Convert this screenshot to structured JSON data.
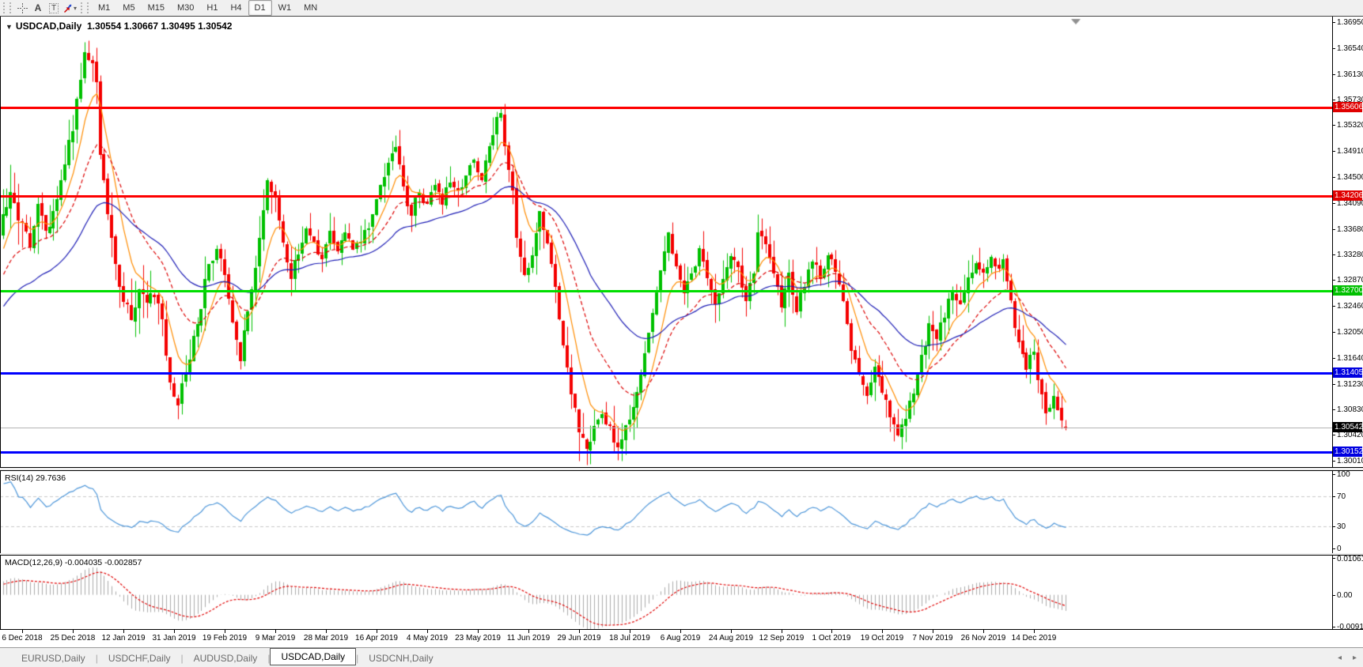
{
  "toolbar": {
    "tools": [
      {
        "name": "crosshair-icon",
        "glyph": "+"
      },
      {
        "name": "text-label-icon",
        "glyph": "A"
      },
      {
        "name": "text-box-icon",
        "glyph": "T"
      },
      {
        "name": "arrows-icon",
        "glyph": "⇅"
      }
    ],
    "timeframes": [
      "M1",
      "M5",
      "M15",
      "M30",
      "H1",
      "H4",
      "D1",
      "W1",
      "MN"
    ],
    "active_timeframe": "D1"
  },
  "chart": {
    "title": "USDCAD,Daily",
    "ohlc_text": "1.30554 1.30667 1.30495 1.30542",
    "collapse_arrow": "▼"
  },
  "chart_data": {
    "type": "candlestick",
    "symbol": "USDCAD",
    "timeframe": "Daily",
    "last_ohlc": {
      "open": "1.30554",
      "high": "1.30667",
      "low": "1.30495",
      "close": "1.30542"
    },
    "current_price": 1.30542,
    "visible_range": {
      "top": 1.37035,
      "bottom": 1.29915
    },
    "colors": {
      "up": "#00C000",
      "down": "#F40000",
      "bg": "#FFFFFF"
    },
    "price_axis": {
      "ticks": [
        "1.36950",
        "1.36540",
        "1.36130",
        "1.35730",
        "1.35320",
        "1.34910",
        "1.34500",
        "1.34090",
        "1.33680",
        "1.33280",
        "1.32870",
        "1.32460",
        "1.32050",
        "1.31640",
        "1.31230",
        "1.30830",
        "1.30420",
        "1.30010"
      ]
    },
    "levels": [
      {
        "name": "resistance-1",
        "label": "1.35606",
        "value": 1.35606,
        "line": "#FE0000",
        "tag": "#E00000",
        "thickness": 3
      },
      {
        "name": "resistance-2",
        "label": "1.34206",
        "value": 1.34206,
        "line": "#FE0000",
        "tag": "#E00000",
        "thickness": 3
      },
      {
        "name": "pivot-green",
        "label": "1.32700",
        "value": 1.327,
        "line": "#00DE00",
        "tag": "#00C000",
        "thickness": 3
      },
      {
        "name": "support-1",
        "label": "1.31405",
        "value": 1.31405,
        "line": "#0000FE",
        "tag": "#0000E0",
        "thickness": 3
      },
      {
        "name": "support-2",
        "label": "1.30152",
        "value": 1.30152,
        "line": "#0000FE",
        "tag": "#0000E0",
        "thickness": 3
      },
      {
        "name": "current-bid",
        "label": "1.30542",
        "value": 1.30542,
        "line": "#B4B4B4",
        "tag": "#000000",
        "thickness": 1
      }
    ],
    "x_labels": [
      "6 Dec 2018",
      "25 Dec 2018",
      "12 Jan 2019",
      "31 Jan 2019",
      "19 Feb 2019",
      "9 Mar 2019",
      "28 Mar 2019",
      "16 Apr 2019",
      "4 May 2019",
      "23 May 2019",
      "11 Jun 2019",
      "29 Jun 2019",
      "18 Jul 2019",
      "6 Aug 2019",
      "24 Aug 2019",
      "12 Sep 2019",
      "1 Oct 2019",
      "19 Oct 2019",
      "7 Nov 2019",
      "26 Nov 2019",
      "14 Dec 2019"
    ],
    "x_label_first_candle": 5,
    "x_label_step_candles": 13,
    "candle_count": 274,
    "price_path_anchors_est": [
      [
        -60,
        1.308
      ],
      [
        -45,
        1.3135
      ],
      [
        -30,
        1.322
      ],
      [
        -15,
        1.3245
      ],
      [
        -5,
        1.33
      ],
      [
        -1,
        1.336
      ],
      [
        0,
        1.339
      ],
      [
        2,
        1.3425
      ],
      [
        4,
        1.337
      ],
      [
        5,
        1.3375
      ],
      [
        7,
        1.334
      ],
      [
        9,
        1.34
      ],
      [
        11,
        1.3355
      ],
      [
        13,
        1.339
      ],
      [
        15,
        1.3445
      ],
      [
        17,
        1.35
      ],
      [
        19,
        1.3565
      ],
      [
        21,
        1.3638
      ],
      [
        23,
        1.364
      ],
      [
        24,
        1.3605
      ],
      [
        25,
        1.348
      ],
      [
        27,
        1.34
      ],
      [
        29,
        1.332
      ],
      [
        31,
        1.325
      ],
      [
        33,
        1.3225
      ],
      [
        35,
        1.327
      ],
      [
        37,
        1.3248
      ],
      [
        39,
        1.3268
      ],
      [
        41,
        1.3222
      ],
      [
        43,
        1.313
      ],
      [
        45,
        1.3092
      ],
      [
        47,
        1.314
      ],
      [
        49,
        1.32
      ],
      [
        51,
        1.3248
      ],
      [
        53,
        1.331
      ],
      [
        55,
        1.3338
      ],
      [
        57,
        1.33
      ],
      [
        59,
        1.3222
      ],
      [
        61,
        1.3168
      ],
      [
        63,
        1.323
      ],
      [
        65,
        1.33
      ],
      [
        67,
        1.3392
      ],
      [
        68,
        1.3448
      ],
      [
        70,
        1.342
      ],
      [
        72,
        1.3352
      ],
      [
        74,
        1.3292
      ],
      [
        76,
        1.333
      ],
      [
        78,
        1.337
      ],
      [
        80,
        1.3342
      ],
      [
        82,
        1.3312
      ],
      [
        84,
        1.336
      ],
      [
        86,
        1.3332
      ],
      [
        88,
        1.336
      ],
      [
        90,
        1.3332
      ],
      [
        93,
        1.336
      ],
      [
        95,
        1.3392
      ],
      [
        97,
        1.3432
      ],
      [
        99,
        1.347
      ],
      [
        101,
        1.3498
      ],
      [
        103,
        1.3432
      ],
      [
        105,
        1.3392
      ],
      [
        107,
        1.343
      ],
      [
        109,
        1.3402
      ],
      [
        111,
        1.344
      ],
      [
        113,
        1.3412
      ],
      [
        115,
        1.3442
      ],
      [
        117,
        1.3422
      ],
      [
        119,
        1.3452
      ],
      [
        121,
        1.3472
      ],
      [
        123,
        1.345
      ],
      [
        125,
        1.3492
      ],
      [
        127,
        1.3538
      ],
      [
        128,
        1.3552
      ],
      [
        129,
        1.35
      ],
      [
        131,
        1.3432
      ],
      [
        132,
        1.3355
      ],
      [
        134,
        1.3292
      ],
      [
        136,
        1.333
      ],
      [
        138,
        1.3392
      ],
      [
        140,
        1.334
      ],
      [
        142,
        1.3272
      ],
      [
        144,
        1.318
      ],
      [
        146,
        1.3112
      ],
      [
        148,
        1.3045
      ],
      [
        150,
        1.3022
      ],
      [
        152,
        1.3052
      ],
      [
        154,
        1.3082
      ],
      [
        156,
        1.3052
      ],
      [
        158,
        1.3022
      ],
      [
        160,
        1.3052
      ],
      [
        162,
        1.3092
      ],
      [
        164,
        1.3142
      ],
      [
        166,
        1.3202
      ],
      [
        168,
        1.3272
      ],
      [
        170,
        1.333
      ],
      [
        171,
        1.3358
      ],
      [
        173,
        1.3302
      ],
      [
        175,
        1.3262
      ],
      [
        177,
        1.3302
      ],
      [
        179,
        1.333
      ],
      [
        181,
        1.3292
      ],
      [
        183,
        1.3252
      ],
      [
        185,
        1.3292
      ],
      [
        187,
        1.333
      ],
      [
        189,
        1.3302
      ],
      [
        191,
        1.3262
      ],
      [
        193,
        1.3302
      ],
      [
        194,
        1.3368
      ],
      [
        196,
        1.334
      ],
      [
        198,
        1.3292
      ],
      [
        200,
        1.3252
      ],
      [
        202,
        1.3292
      ],
      [
        204,
        1.3242
      ],
      [
        206,
        1.3282
      ],
      [
        208,
        1.332
      ],
      [
        210,
        1.3292
      ],
      [
        212,
        1.333
      ],
      [
        214,
        1.3302
      ],
      [
        216,
        1.3252
      ],
      [
        218,
        1.3182
      ],
      [
        220,
        1.3132
      ],
      [
        222,
        1.3112
      ],
      [
        224,
        1.3152
      ],
      [
        226,
        1.3112
      ],
      [
        228,
        1.3072
      ],
      [
        230,
        1.3048
      ],
      [
        232,
        1.3072
      ],
      [
        234,
        1.3112
      ],
      [
        236,
        1.3162
      ],
      [
        238,
        1.3212
      ],
      [
        240,
        1.3192
      ],
      [
        242,
        1.3232
      ],
      [
        244,
        1.3272
      ],
      [
        246,
        1.3252
      ],
      [
        248,
        1.3292
      ],
      [
        250,
        1.3312
      ],
      [
        252,
        1.3302
      ],
      [
        254,
        1.3322
      ],
      [
        256,
        1.3302
      ],
      [
        257,
        1.3322
      ],
      [
        259,
        1.3252
      ],
      [
        261,
        1.3182
      ],
      [
        263,
        1.3152
      ],
      [
        265,
        1.3172
      ],
      [
        266,
        1.3122
      ],
      [
        268,
        1.3082
      ],
      [
        270,
        1.3102
      ],
      [
        271,
        1.3076
      ],
      [
        272,
        1.3062
      ],
      [
        273,
        1.30542
      ]
    ],
    "forced_extremes": [
      [
        21,
        "h",
        1.36637
      ],
      [
        24,
        "h",
        1.36551
      ],
      [
        45,
        "l",
        1.30681
      ],
      [
        128,
        "h",
        1.35609
      ],
      [
        148,
        "l",
        1.30012
      ],
      [
        150,
        "l",
        1.29948
      ],
      [
        158,
        "l",
        1.30031
      ],
      [
        230,
        "l",
        1.30402
      ]
    ],
    "moving_averages": [
      {
        "name": "ma-fast-orange",
        "period": 8,
        "color": "#FF8C00",
        "dash": []
      },
      {
        "name": "ma-mid-red",
        "period": 20,
        "color": "#DC0000",
        "dash": [
          5,
          3
        ]
      },
      {
        "name": "ma-slow-blue",
        "period": 45,
        "color": "#1A1AB4",
        "dash": []
      }
    ],
    "indicators": [
      {
        "name": "RSI",
        "label": "RSI(14) 29.7636",
        "value": "29.7636",
        "axis_ticks": [
          "100",
          "70",
          "30",
          "0"
        ],
        "guide_levels": [
          70,
          30
        ],
        "color": "#4D96D9",
        "guide_color": "#C8C8C8",
        "range": [
          0,
          100
        ]
      },
      {
        "name": "MACD",
        "label": "MACD(12,26,9) -0.004035 -0.002857",
        "main_value": "-0.004035",
        "signal_value": "-0.002857",
        "axis_ticks": [
          "0.010615",
          "0.00",
          "-0.00918"
        ],
        "axis_tick_values": [
          0.010615,
          0,
          -0.00918
        ],
        "range": [
          -0.00918,
          0.010615
        ],
        "hist_color": "#ABABAB",
        "signal_color": "#E00000"
      }
    ],
    "shift_marker_color": "#909090"
  },
  "tabs": {
    "items": [
      "EURUSD,Daily",
      "USDCHF,Daily",
      "AUDUSD,Daily",
      "USDCAD,Daily",
      "USDCNH,Daily"
    ],
    "active_index": 3,
    "scroll_left": "◂",
    "scroll_right": "▸"
  }
}
